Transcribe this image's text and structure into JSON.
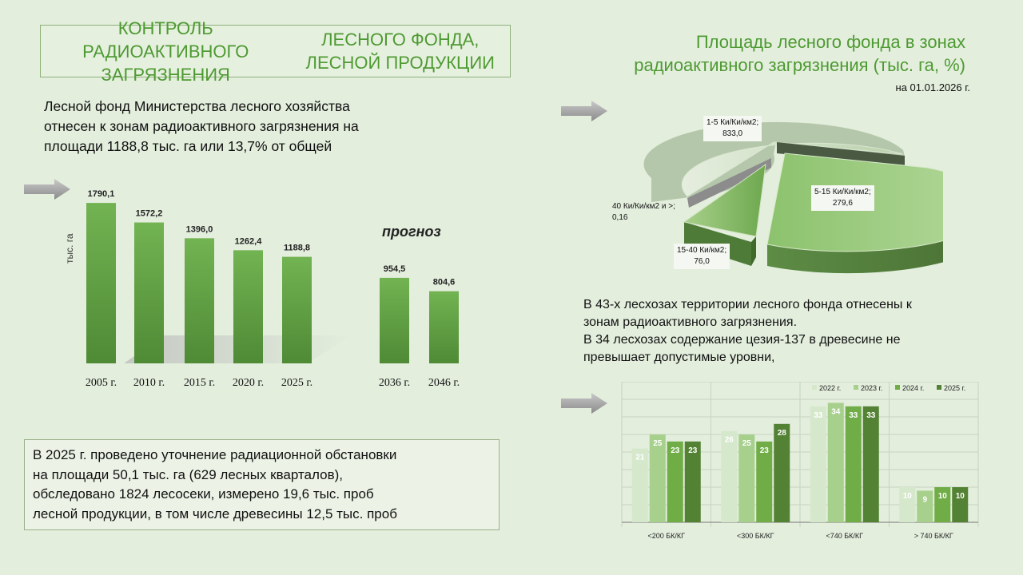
{
  "header": {
    "title_line1": "КОНТРОЛЬ РАДИОАКТИВНОГО ЗАГРЯЗНЕНИЯ",
    "title_line2": "ЛЕСНОГО ФОНДА, ЛЕСНОЙ ПРОДУКЦИИ"
  },
  "intro": {
    "line1": "Лесной фонд Министерства лесного хозяйства",
    "line2": "отнесен к зонам радиоактивного загрязнения на",
    "line3": "площади 1188,8 тыс. га или 13,7% от общей"
  },
  "bottom_box": {
    "line1": "В 2025 г. проведено уточнение радиационной обстановки",
    "line2": "на площади 50,1 тыс. га (629 лесных кварталов),",
    "line3": "обследовано 1824 лесосеки, измерено 19,6 тыс. проб",
    "line4": "лесной продукции, в том числе древесины 12,5 тыс. проб"
  },
  "pie_header": {
    "title_line1": "Площадь лесного фонда в зонах",
    "title_line2": "радиоактивного загрязнения (тыс. га, %)",
    "date": "на 01.01.2026 г."
  },
  "mid_text": {
    "line1": "В 43-х лесхозах территории лесного фонда отнесены к",
    "line2": "зонам радиоактивного загрязнения.",
    "line3": "В 34 лесхозах содержание цезия-137 в древесине не",
    "line4": "превышает допустимые уровни,"
  },
  "colors": {
    "accent": "#4e9a32",
    "bar_green": "#6aa84f",
    "background": "#e3eedd"
  },
  "chart_data": [
    {
      "type": "bar",
      "ylabel": "тыс. га",
      "annotation": "прогноз",
      "categories": [
        "2005 г.",
        "2010 г.",
        "2015 г.",
        "2020 г.",
        "2025 г.",
        "2036 г.",
        "2046 г."
      ],
      "values": [
        1790.1,
        1572.2,
        1396.0,
        1262.4,
        1188.8,
        954.5,
        804.6
      ],
      "value_labels": [
        "1790,1",
        "1572,2",
        "1396,0",
        "1262,4",
        "1188,8",
        "954,5",
        "804,6"
      ],
      "ylim": [
        0,
        1800
      ]
    },
    {
      "type": "pie",
      "slices": [
        {
          "label": "1-5 Ки/Ки/км2;",
          "value_label": "833,0",
          "value": 833.0
        },
        {
          "label": "5-15 Ки/Ки/км2;",
          "value_label": "279,6",
          "value": 279.6
        },
        {
          "label": "15-40 Ки/км2;",
          "value_label": "76,0",
          "value": 76.0
        },
        {
          "label": "40 Ки/Ки/км2 и >;",
          "value_label": "0,16",
          "value": 0.16
        }
      ]
    },
    {
      "type": "bar",
      "categories": [
        "<200 БК/КГ",
        "<300 БК/КГ",
        "<740 БК/КГ",
        "> 740 БК/КГ"
      ],
      "series": [
        {
          "name": "2022 г.",
          "values": [
            21,
            26,
            33,
            10
          ],
          "color": "#d6e8cc"
        },
        {
          "name": "2023 г.",
          "values": [
            25,
            25,
            34,
            9
          ],
          "color": "#a8d08d"
        },
        {
          "name": "2024 г.",
          "values": [
            23,
            23,
            33,
            10
          ],
          "color": "#70ad47"
        },
        {
          "name": "2025 г.",
          "values": [
            23,
            28,
            33,
            10
          ],
          "color": "#548235"
        }
      ],
      "ylim": [
        0,
        40
      ],
      "legend": "top-right"
    }
  ]
}
